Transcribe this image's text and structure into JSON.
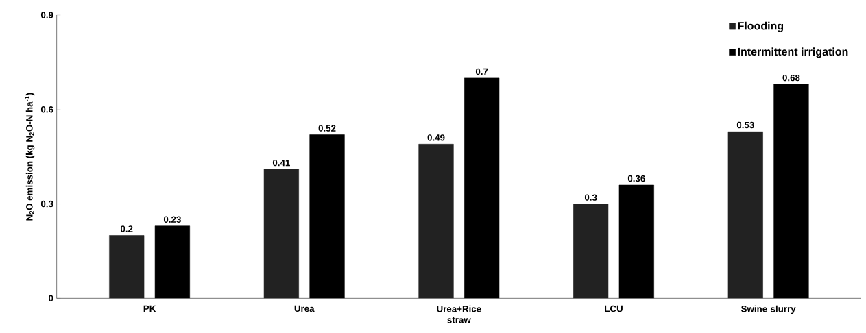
{
  "chart_data": {
    "type": "bar",
    "ylabel": "N$_{2}$O emission (kg N$_{2}$O-N ha$^{-1}$)",
    "categories": [
      "PK",
      "Urea",
      "Urea+Rice straw",
      "LCU",
      "Swine slurry"
    ],
    "series": [
      {
        "name": "Flooding",
        "color": "#222222",
        "values": [
          0.2,
          0.41,
          0.49,
          0.3,
          0.53
        ]
      },
      {
        "name": "Intermittent  irrigation",
        "color": "#000000",
        "values": [
          0.23,
          0.52,
          0.7,
          0.36,
          0.68
        ]
      }
    ],
    "ylim": [
      0,
      0.9
    ],
    "yticks": [
      0,
      0.3,
      0.6,
      0.9
    ],
    "data_labels": true,
    "legend": "top right",
    "grid": false
  }
}
